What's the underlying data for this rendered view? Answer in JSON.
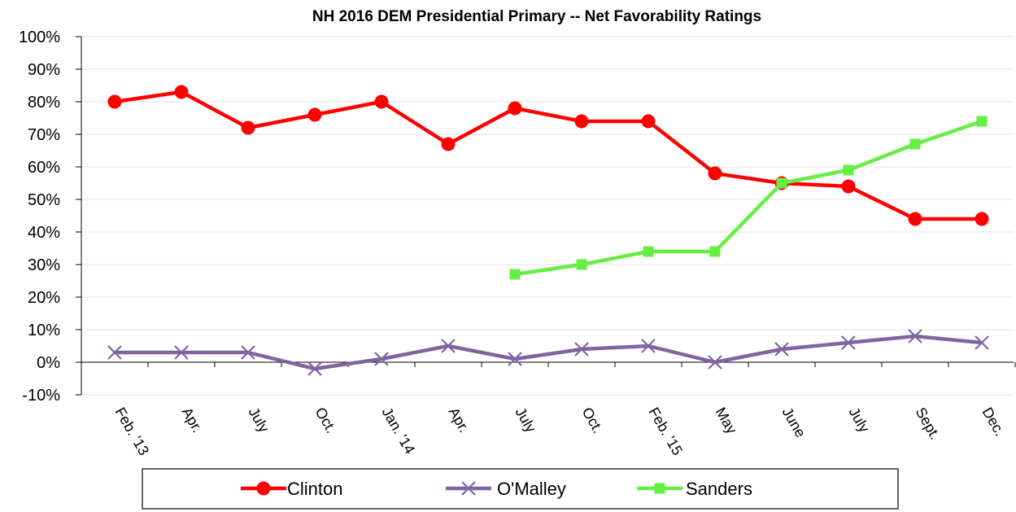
{
  "chart_data": {
    "type": "line",
    "title": "NH 2016 DEM Presidential Primary -- Net Favorability Ratings",
    "xlabel": "",
    "ylabel": "",
    "categories": [
      "Feb. '13",
      "Apr.",
      "July",
      "Oct.",
      "Jan. '14",
      "Apr.",
      "July",
      "Oct.",
      "Feb. '15",
      "May",
      "June",
      "July",
      "Sept.",
      "Dec."
    ],
    "ylim": [
      -10,
      100
    ],
    "ytick_labels": [
      "-10%",
      "0%",
      "10%",
      "20%",
      "30%",
      "40%",
      "50%",
      "60%",
      "70%",
      "80%",
      "90%",
      "100%"
    ],
    "grid": true,
    "legend_position": "bottom",
    "series": [
      {
        "name": "Clinton",
        "color": "#ff0000",
        "marker": "circle",
        "values": [
          80,
          83,
          72,
          76,
          80,
          67,
          78,
          74,
          74,
          58,
          55,
          54,
          44,
          44
        ]
      },
      {
        "name": "O'Malley",
        "color": "#8064a2",
        "marker": "x",
        "values": [
          3,
          3,
          3,
          -2,
          1,
          5,
          1,
          4,
          5,
          0,
          4,
          6,
          8,
          6
        ]
      },
      {
        "name": "Sanders",
        "color": "#66ee44",
        "marker": "square",
        "values": [
          null,
          null,
          null,
          null,
          null,
          null,
          27,
          30,
          34,
          34,
          55,
          59,
          67,
          74
        ]
      }
    ]
  }
}
